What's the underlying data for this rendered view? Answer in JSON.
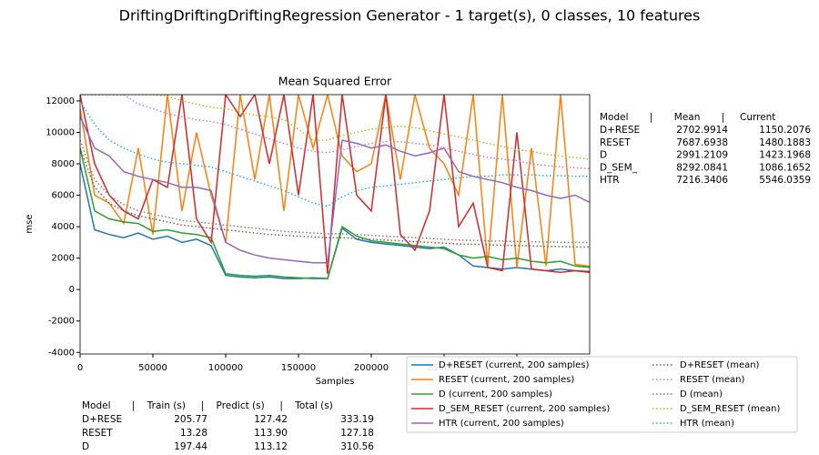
{
  "chart_data": {
    "type": "line",
    "suptitle": "DriftingDriftingDriftingRegression Generator - 1 target(s), 0 classes, 10 features",
    "title": "Mean Squared Error",
    "xlabel": "Samples",
    "ylabel": "mse",
    "xlim": [
      0,
      350000
    ],
    "ylim": [
      -4100,
      12400
    ],
    "xticks": [
      0,
      50000,
      100000,
      150000,
      200000,
      250000,
      300000
    ],
    "yticks": [
      -4000,
      -2000,
      0,
      2000,
      4000,
      6000,
      8000,
      10000,
      12000
    ],
    "legend_columns": 2,
    "x": [
      0,
      10000,
      20000,
      30000,
      40000,
      50000,
      60000,
      70000,
      80000,
      90000,
      100000,
      110000,
      120000,
      130000,
      140000,
      150000,
      160000,
      170000,
      180000,
      190000,
      200000,
      210000,
      220000,
      230000,
      240000,
      250000,
      260000,
      270000,
      280000,
      290000,
      300000,
      310000,
      320000,
      330000,
      340000,
      350000
    ],
    "series": [
      {
        "name": "D+RESET  (current, 200 samples)",
        "color": "#1f77b4",
        "style": "solid",
        "values": [
          8000,
          3800,
          3500,
          3300,
          3600,
          3200,
          3400,
          3000,
          3200,
          2800,
          900,
          800,
          750,
          800,
          700,
          700,
          750,
          700,
          3900,
          3200,
          3000,
          2900,
          2800,
          2700,
          2600,
          2700,
          2200,
          1500,
          1400,
          1300,
          1400,
          1300,
          1200,
          1300,
          1200,
          1150
        ]
      },
      {
        "name": "RESET  (current, 200 samples)",
        "color": "#ff7f0e",
        "style": "solid",
        "values": [
          11500,
          6000,
          5500,
          4200,
          9000,
          3500,
          12400,
          5000,
          10000,
          6000,
          3000,
          12400,
          7000,
          12400,
          5000,
          12400,
          9000,
          12400,
          8500,
          7500,
          8000,
          12400,
          7000,
          12400,
          9000,
          8000,
          6000,
          12400,
          1500,
          12400,
          1400,
          9000,
          1500,
          12400,
          1600,
          1480
        ]
      },
      {
        "name": "D  (current, 200 samples)",
        "color": "#2ca02c",
        "style": "solid",
        "values": [
          9000,
          5000,
          4500,
          4300,
          4200,
          3700,
          3800,
          3600,
          3500,
          3300,
          1000,
          900,
          850,
          900,
          800,
          750,
          700,
          700,
          4000,
          3400,
          3100,
          3000,
          2900,
          2800,
          2700,
          2600,
          2200,
          2000,
          2100,
          1900,
          2000,
          1800,
          1700,
          1800,
          1500,
          1420
        ]
      },
      {
        "name": "D_SEM_RESET  (current, 200 samples)",
        "color": "#d62728",
        "style": "solid",
        "values": [
          12400,
          8000,
          6000,
          5000,
          4500,
          7000,
          6500,
          12400,
          4500,
          3000,
          12400,
          11000,
          12400,
          8000,
          12400,
          6000,
          12400,
          1000,
          12400,
          6000,
          5000,
          12400,
          3500,
          2500,
          5000,
          12400,
          4000,
          5500,
          1400,
          1200,
          10000,
          1300,
          1200,
          1100,
          1200,
          1090
        ]
      },
      {
        "name": "HTR  (current, 200 samples)",
        "color": "#9467bd",
        "style": "solid",
        "values": [
          11000,
          9000,
          8500,
          7500,
          7200,
          7000,
          6800,
          6500,
          6500,
          6300,
          3000,
          2500,
          2200,
          2000,
          1900,
          1800,
          1700,
          1700,
          9500,
          9300,
          9000,
          9200,
          8800,
          8500,
          8700,
          9000,
          7500,
          7200,
          7000,
          6800,
          6500,
          6300,
          6000,
          5800,
          6000,
          5550
        ]
      },
      {
        "name": "D+RESET (mean)",
        "color": "#8c564b",
        "style": "dotted",
        "values": [
          9000,
          6500,
          5500,
          5000,
          4700,
          4500,
          4300,
          4100,
          4000,
          3900,
          3800,
          3700,
          3600,
          3500,
          3450,
          3400,
          3350,
          3300,
          3300,
          3250,
          3200,
          3150,
          3100,
          3050,
          3000,
          2950,
          2900,
          2880,
          2850,
          2820,
          2800,
          2780,
          2750,
          2730,
          2710,
          2700
        ]
      },
      {
        "name": "RESET (mean)",
        "color": "#e377c2",
        "style": "dotted",
        "values": [
          12400,
          12400,
          12400,
          12400,
          11800,
          11500,
          11200,
          11000,
          10800,
          10700,
          10500,
          10200,
          9900,
          9600,
          9300,
          9000,
          8800,
          8700,
          8900,
          9100,
          9300,
          9400,
          9400,
          9300,
          9200,
          9000,
          8800,
          8600,
          8400,
          8300,
          8200,
          8000,
          7900,
          7800,
          7750,
          7690
        ]
      },
      {
        "name": "D (mean)",
        "color": "#7f7f7f",
        "style": "dotted",
        "values": [
          9500,
          7000,
          6000,
          5400,
          5000,
          4800,
          4600,
          4400,
          4300,
          4200,
          4100,
          4000,
          3900,
          3800,
          3700,
          3650,
          3600,
          3550,
          3550,
          3500,
          3450,
          3400,
          3350,
          3300,
          3250,
          3200,
          3150,
          3120,
          3100,
          3080,
          3060,
          3040,
          3020,
          3010,
          3000,
          2990
        ]
      },
      {
        "name": "D_SEM_RESET (mean)",
        "color": "#bcbd22",
        "style": "dotted",
        "values": [
          12400,
          12400,
          12400,
          12400,
          12400,
          12400,
          12300,
          12000,
          11800,
          11600,
          11500,
          11300,
          11100,
          11000,
          10800,
          10200,
          9500,
          9500,
          9800,
          10000,
          10200,
          10300,
          10400,
          10300,
          10100,
          9900,
          9700,
          9500,
          9300,
          9100,
          8900,
          8800,
          8600,
          8500,
          8400,
          8290
        ]
      },
      {
        "name": "HTR (mean)",
        "color": "#17becf",
        "style": "dotted",
        "values": [
          12000,
          10500,
          9500,
          9000,
          8600,
          8300,
          8100,
          8000,
          7900,
          7800,
          7500,
          7200,
          6900,
          6600,
          6300,
          5900,
          5500,
          5300,
          5900,
          6300,
          6500,
          6600,
          6700,
          6800,
          6900,
          7000,
          7100,
          7200,
          7200,
          7300,
          7300,
          7300,
          7250,
          7250,
          7200,
          7220
        ]
      }
    ]
  },
  "side_table": {
    "header": "Model       |       Mean       |     Current",
    "rows": [
      [
        "D+RESE",
        "2702.9914",
        "1150.2076"
      ],
      [
        "RESET",
        "7687.6938",
        "1480.1883"
      ],
      [
        "D",
        "2991.2109",
        "1423.1968"
      ],
      [
        "D_SEM_",
        "8292.0841",
        "1086.1652"
      ],
      [
        "HTR",
        "7216.3406",
        "5546.0359"
      ]
    ]
  },
  "time_table": {
    "header": "Model       |    Train (s)     |    Predict (s)     |    Total (s)",
    "rows": [
      [
        "D+RESE",
        "205.77",
        "127.42",
        "333.19"
      ],
      [
        "RESET",
        "13.28",
        "113.90",
        "127.18"
      ],
      [
        "D",
        "197.44",
        "113.12",
        "310.56"
      ]
    ]
  }
}
